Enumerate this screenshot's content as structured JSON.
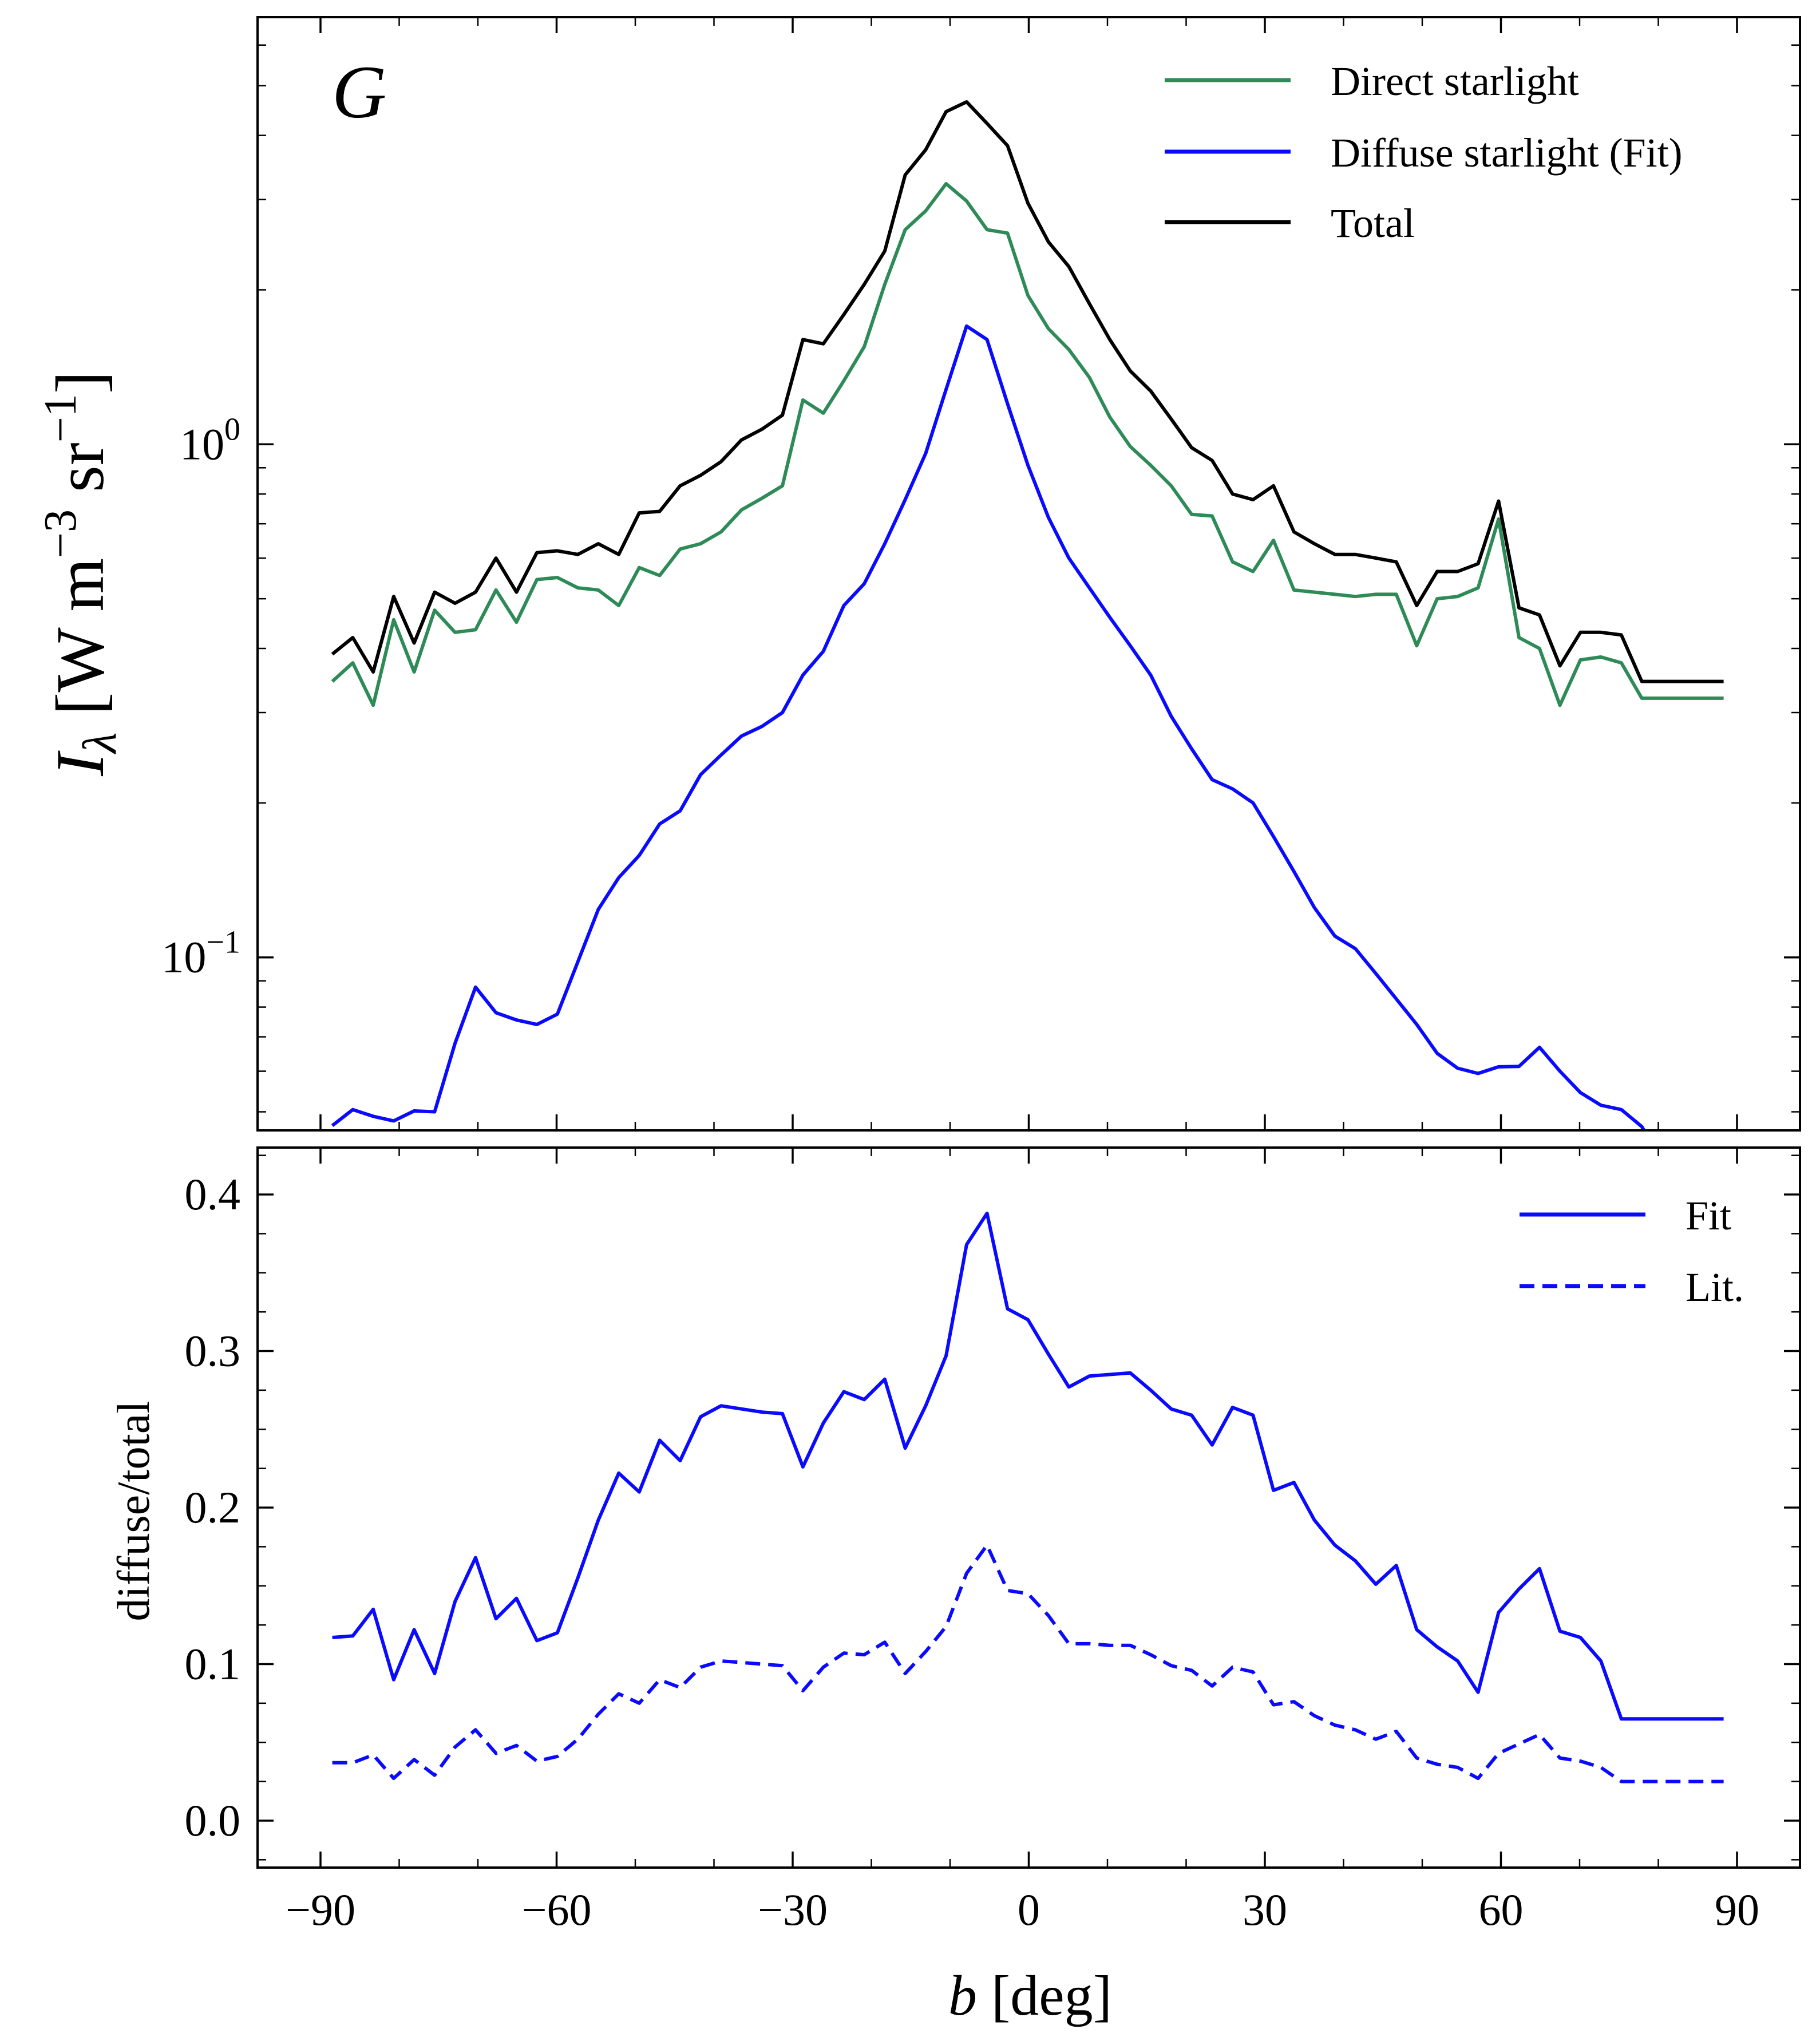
{
  "chart_data": [
    {
      "type": "line",
      "panel_label": "G",
      "ylabel": {
        "symbol": "I",
        "subscript": "λ",
        "unit_prefix": "[W m",
        "exp1": "−3",
        "unit_mid": " sr",
        "exp2": "−1",
        "unit_suffix": "]"
      },
      "yscale": "log",
      "ylim": [
        0.046,
        6.8
      ],
      "xlim": [
        -98,
        98
      ],
      "xticks": [
        -90,
        -60,
        -30,
        0,
        30,
        60,
        90
      ],
      "yticks": [
        {
          "base": "10",
          "exp": "−1",
          "value": 0.1
        },
        {
          "base": "10",
          "exp": "0",
          "value": 1.0
        }
      ],
      "legend_position": "top-right",
      "x": [
        -88.5,
        -85.9,
        -83.3,
        -80.7,
        -78.1,
        -75.5,
        -72.9,
        -70.3,
        -67.7,
        -65.1,
        -62.5,
        -59.9,
        -57.3,
        -54.7,
        -52.1,
        -49.5,
        -46.9,
        -44.3,
        -41.7,
        -39.1,
        -36.5,
        -33.9,
        -31.3,
        -28.7,
        -26.1,
        -23.5,
        -20.9,
        -18.3,
        -15.7,
        -13.1,
        -10.5,
        -7.9,
        -5.3,
        -2.7,
        -0.1,
        2.5,
        5.1,
        7.7,
        10.3,
        12.9,
        15.5,
        18.1,
        20.7,
        23.3,
        25.9,
        28.5,
        31.1,
        33.7,
        36.3,
        38.9,
        41.5,
        44.1,
        46.7,
        49.3,
        51.9,
        54.5,
        57.1,
        59.7,
        62.3,
        64.9,
        67.5,
        70.1,
        72.7,
        75.3,
        77.9,
        80.5,
        83.1,
        85.7,
        88.3
      ],
      "series": [
        {
          "name": "Direct starlight",
          "color": "#2e8b57",
          "values": [
            0.345,
            0.375,
            0.31,
            0.455,
            0.36,
            0.475,
            0.43,
            0.435,
            0.52,
            0.45,
            0.545,
            0.55,
            0.525,
            0.52,
            0.485,
            0.575,
            0.555,
            0.625,
            0.64,
            0.675,
            0.745,
            0.785,
            0.83,
            1.22,
            1.15,
            1.33,
            1.55,
            2.05,
            2.62,
            2.85,
            3.22,
            2.98,
            2.62,
            2.58,
            1.95,
            1.68,
            1.53,
            1.35,
            1.13,
            0.99,
            0.91,
            0.83,
            0.73,
            0.725,
            0.59,
            0.565,
            0.65,
            0.52,
            0.515,
            0.51,
            0.505,
            0.51,
            0.51,
            0.405,
            0.5,
            0.505,
            0.525,
            0.715,
            0.42,
            0.4,
            0.31,
            0.38,
            0.385,
            0.375,
            0.32,
            0.32,
            0.32,
            0.32,
            0.32
          ]
        },
        {
          "name": "Diffuse starlight (Fit)",
          "color": "#0a0aff",
          "values": [
            0.047,
            0.0505,
            0.049,
            0.048,
            0.0502,
            0.05,
            0.068,
            0.0875,
            0.078,
            0.0755,
            0.074,
            0.0775,
            0.098,
            0.124,
            0.143,
            0.158,
            0.182,
            0.193,
            0.227,
            0.248,
            0.27,
            0.282,
            0.3,
            0.355,
            0.395,
            0.485,
            0.535,
            0.64,
            0.78,
            0.96,
            1.28,
            1.7,
            1.6,
            1.2,
            0.91,
            0.72,
            0.6,
            0.525,
            0.46,
            0.405,
            0.355,
            0.295,
            0.255,
            0.222,
            0.213,
            0.2,
            0.172,
            0.147,
            0.125,
            0.11,
            0.104,
            0.093,
            0.083,
            0.074,
            0.065,
            0.0608,
            0.0594,
            0.0612,
            0.0613,
            0.0668,
            0.06,
            0.0545,
            0.0515,
            0.0505,
            0.0468,
            0.04,
            0.04,
            0.04,
            0.04
          ]
        },
        {
          "name": "Total",
          "color": "#000000",
          "values": [
            0.39,
            0.42,
            0.36,
            0.505,
            0.41,
            0.515,
            0.49,
            0.515,
            0.6,
            0.515,
            0.615,
            0.62,
            0.61,
            0.64,
            0.61,
            0.735,
            0.74,
            0.83,
            0.87,
            0.925,
            1.02,
            1.07,
            1.14,
            1.6,
            1.57,
            1.79,
            2.05,
            2.38,
            3.35,
            3.75,
            4.45,
            4.65,
            4.22,
            3.82,
            2.95,
            2.48,
            2.22,
            1.88,
            1.6,
            1.39,
            1.27,
            1.12,
            0.985,
            0.93,
            0.8,
            0.78,
            0.83,
            0.675,
            0.64,
            0.61,
            0.61,
            0.6,
            0.59,
            0.485,
            0.565,
            0.565,
            0.585,
            0.775,
            0.48,
            0.465,
            0.37,
            0.43,
            0.43,
            0.425,
            0.345,
            0.345,
            0.345,
            0.345,
            0.345
          ]
        }
      ]
    },
    {
      "type": "line",
      "xlabel": {
        "symbol": "b",
        "rest": " [deg]"
      },
      "ylabel": "diffuse/total",
      "ylim": [
        -0.03,
        0.43
      ],
      "xlim": [
        -98,
        98
      ],
      "xticks": [
        -90,
        -60,
        -30,
        0,
        30,
        60,
        90
      ],
      "yticks": [
        0.0,
        0.1,
        0.2,
        0.3,
        0.4
      ],
      "legend_position": "top-right",
      "x": [
        -88.5,
        -85.9,
        -83.3,
        -80.7,
        -78.1,
        -75.5,
        -72.9,
        -70.3,
        -67.7,
        -65.1,
        -62.5,
        -59.9,
        -57.3,
        -54.7,
        -52.1,
        -49.5,
        -46.9,
        -44.3,
        -41.7,
        -39.1,
        -36.5,
        -33.9,
        -31.3,
        -28.7,
        -26.1,
        -23.5,
        -20.9,
        -18.3,
        -15.7,
        -13.1,
        -10.5,
        -7.9,
        -5.3,
        -2.7,
        -0.1,
        2.5,
        5.1,
        7.7,
        10.3,
        12.9,
        15.5,
        18.1,
        20.7,
        23.3,
        25.9,
        28.5,
        31.1,
        33.7,
        36.3,
        38.9,
        41.5,
        44.1,
        46.7,
        49.3,
        51.9,
        54.5,
        57.1,
        59.7,
        62.3,
        64.9,
        67.5,
        70.1,
        72.7,
        75.3,
        77.9,
        80.5,
        83.1,
        85.7,
        88.3
      ],
      "series": [
        {
          "name": "Fit",
          "color": "#0a0aff",
          "linestyle": "solid",
          "values": [
            0.117,
            0.118,
            0.135,
            0.09,
            0.122,
            0.094,
            0.14,
            0.168,
            0.129,
            0.142,
            0.115,
            0.12,
            0.155,
            0.192,
            0.222,
            0.21,
            0.243,
            0.23,
            0.258,
            0.265,
            0.263,
            0.261,
            0.26,
            0.226,
            0.254,
            0.274,
            0.269,
            0.282,
            0.238,
            0.265,
            0.297,
            0.368,
            0.388,
            0.327,
            0.32,
            0.298,
            0.277,
            0.284,
            0.285,
            0.286,
            0.275,
            0.263,
            0.259,
            0.24,
            0.264,
            0.259,
            0.211,
            0.216,
            0.192,
            0.176,
            0.166,
            0.151,
            0.163,
            0.122,
            0.111,
            0.102,
            0.082,
            0.133,
            0.148,
            0.161,
            0.121,
            0.117,
            0.102,
            0.065,
            0.065,
            0.065,
            0.065,
            0.065,
            0.065
          ]
        },
        {
          "name": "Lit.",
          "color": "#0a0aff",
          "linestyle": "dashed",
          "values": [
            0.037,
            0.037,
            0.042,
            0.027,
            0.039,
            0.029,
            0.047,
            0.058,
            0.043,
            0.048,
            0.038,
            0.041,
            0.052,
            0.068,
            0.081,
            0.075,
            0.09,
            0.085,
            0.098,
            0.102,
            0.101,
            0.1,
            0.099,
            0.083,
            0.098,
            0.107,
            0.106,
            0.114,
            0.094,
            0.108,
            0.124,
            0.158,
            0.176,
            0.147,
            0.145,
            0.131,
            0.113,
            0.113,
            0.112,
            0.112,
            0.106,
            0.099,
            0.096,
            0.086,
            0.098,
            0.095,
            0.074,
            0.076,
            0.067,
            0.061,
            0.058,
            0.052,
            0.057,
            0.04,
            0.036,
            0.034,
            0.027,
            0.043,
            0.049,
            0.055,
            0.04,
            0.038,
            0.034,
            0.025,
            0.025,
            0.025,
            0.025,
            0.025,
            0.025
          ]
        }
      ]
    }
  ]
}
